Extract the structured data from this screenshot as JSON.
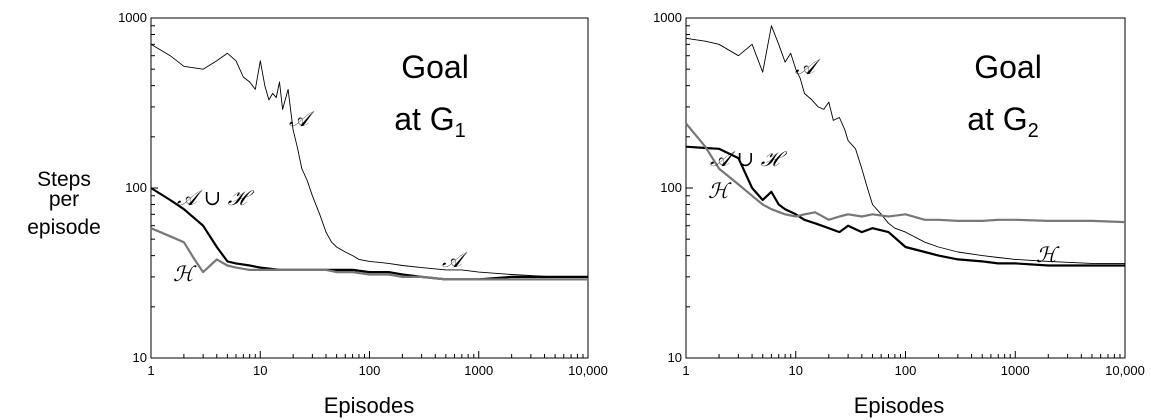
{
  "y_axis_label": [
    "Steps",
    "per",
    "episode"
  ],
  "charts": [
    {
      "title_lines": [
        "Goal",
        "at G"
      ],
      "title_subscript": "1",
      "xlabel": "Episodes",
      "x_ticks": [
        "1",
        "10",
        "100",
        "1000",
        "10,000"
      ],
      "y_ticks": [
        "10",
        "100",
        "1000"
      ],
      "series_labels": {
        "A_upper": "𝒜",
        "A_lower": "𝒜",
        "AH": "𝒜 ∪ ℋ",
        "H": "ℋ"
      }
    },
    {
      "title_lines": [
        "Goal",
        "at G"
      ],
      "title_subscript": "2",
      "xlabel": "Episodes",
      "x_ticks": [
        "1",
        "10",
        "100",
        "1000",
        "10,000"
      ],
      "y_ticks": [
        "10",
        "100",
        "1000"
      ],
      "series_labels": {
        "A_upper": "𝒜",
        "AH": "𝒜 ∪ ℋ",
        "H": "ℋ"
      }
    }
  ],
  "chart_data": [
    {
      "type": "line",
      "xscale": "log",
      "yscale": "log",
      "xlim": [
        1,
        10000
      ],
      "ylim": [
        10,
        1000
      ],
      "xlabel": "Episodes",
      "ylabel": "Steps per episode",
      "series": [
        {
          "name": "𝒜",
          "color": "#000000",
          "width": 0.9,
          "x": [
            1,
            1.5,
            2,
            3,
            4,
            5,
            6,
            7,
            8,
            9,
            10,
            11,
            12,
            13,
            14,
            15,
            16,
            18,
            20,
            22,
            24,
            27,
            30,
            35,
            40,
            45,
            50,
            60,
            70,
            80,
            100,
            150,
            200,
            300,
            500,
            700,
            1000,
            2000,
            5000,
            10000
          ],
          "y": [
            700,
            600,
            520,
            500,
            560,
            620,
            560,
            450,
            420,
            380,
            560,
            400,
            330,
            360,
            340,
            420,
            290,
            380,
            220,
            170,
            130,
            110,
            90,
            70,
            55,
            48,
            45,
            42,
            40,
            38,
            37,
            36,
            35,
            34,
            33,
            33,
            32,
            31,
            30,
            30
          ]
        },
        {
          "name": "𝒜 ∪ ℋ",
          "color": "#000000",
          "width": 2.2,
          "x": [
            1,
            1.5,
            2,
            3,
            4,
            5,
            6,
            8,
            10,
            15,
            20,
            30,
            40,
            50,
            70,
            100,
            150,
            200,
            300,
            500,
            700,
            1000,
            2000,
            5000,
            10000
          ],
          "y": [
            100,
            85,
            75,
            60,
            45,
            37,
            36,
            35,
            34,
            33,
            33,
            33,
            33,
            33,
            33,
            32,
            32,
            31,
            30,
            29,
            29,
            29,
            30,
            30,
            30
          ]
        },
        {
          "name": "ℋ",
          "color": "#777777",
          "width": 2.2,
          "x": [
            1,
            1.5,
            2,
            2.5,
            3,
            4,
            5,
            6,
            8,
            10,
            15,
            20,
            30,
            40,
            50,
            70,
            100,
            150,
            200,
            300,
            500,
            700,
            1000,
            2000,
            5000,
            10000
          ],
          "y": [
            58,
            52,
            48,
            38,
            32,
            38,
            35,
            34,
            33,
            33,
            33,
            33,
            33,
            33,
            32,
            32,
            31,
            31,
            30,
            30,
            29,
            29,
            29,
            29,
            29,
            29
          ]
        }
      ]
    },
    {
      "type": "line",
      "xscale": "log",
      "yscale": "log",
      "xlim": [
        1,
        10000
      ],
      "ylim": [
        10,
        1000
      ],
      "xlabel": "Episodes",
      "series": [
        {
          "name": "𝒜",
          "color": "#000000",
          "width": 0.9,
          "x": [
            1,
            1.5,
            2,
            3,
            4,
            5,
            6,
            7,
            8,
            9,
            10,
            11,
            12,
            14,
            16,
            18,
            20,
            22,
            25,
            28,
            30,
            35,
            40,
            45,
            50,
            60,
            70,
            80,
            100,
            150,
            200,
            300,
            500,
            700,
            1000,
            2000,
            5000,
            10000
          ],
          "y": [
            760,
            730,
            700,
            600,
            700,
            480,
            900,
            700,
            550,
            620,
            500,
            440,
            360,
            330,
            300,
            290,
            320,
            250,
            260,
            220,
            190,
            170,
            130,
            100,
            80,
            70,
            62,
            58,
            55,
            48,
            45,
            42,
            40,
            39,
            38,
            37,
            36,
            36
          ]
        },
        {
          "name": "𝒜 ∪ ℋ",
          "color": "#000000",
          "width": 2.2,
          "x": [
            1,
            1.5,
            2,
            3,
            4,
            5,
            6,
            7,
            8,
            10,
            12,
            15,
            20,
            25,
            30,
            40,
            50,
            70,
            100,
            150,
            200,
            300,
            500,
            700,
            1000,
            2000,
            5000,
            10000
          ],
          "y": [
            175,
            172,
            170,
            150,
            100,
            85,
            95,
            80,
            75,
            70,
            65,
            62,
            58,
            55,
            60,
            55,
            58,
            55,
            45,
            42,
            40,
            38,
            37,
            36,
            36,
            35,
            35,
            35
          ]
        },
        {
          "name": "ℋ",
          "color": "#777777",
          "width": 2.2,
          "x": [
            1,
            1.5,
            2,
            3,
            4,
            5,
            6,
            8,
            10,
            12,
            15,
            20,
            25,
            30,
            40,
            50,
            70,
            100,
            150,
            200,
            300,
            500,
            700,
            1000,
            2000,
            5000,
            10000
          ],
          "y": [
            240,
            175,
            130,
            105,
            90,
            80,
            75,
            70,
            68,
            70,
            72,
            65,
            68,
            70,
            68,
            70,
            68,
            70,
            65,
            65,
            64,
            64,
            65,
            65,
            64,
            64,
            63
          ]
        }
      ]
    }
  ]
}
